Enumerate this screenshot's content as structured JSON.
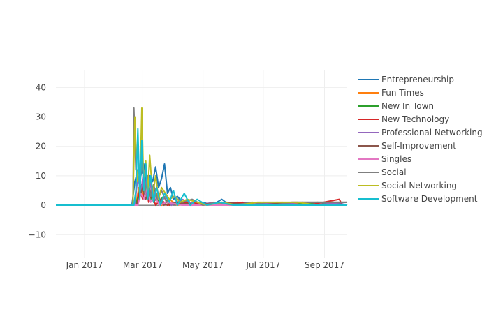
{
  "chart_data": {
    "type": "line",
    "title": "",
    "xlabel": "",
    "ylabel": "",
    "x_range": [
      "2016-12-03",
      "2017-09-24"
    ],
    "ylim": [
      -18,
      46
    ],
    "y_ticks": [
      -10,
      0,
      10,
      20,
      30,
      40
    ],
    "x_ticks": [
      {
        "date": "2017-01-01",
        "label": "Jan 2017"
      },
      {
        "date": "2017-03-01",
        "label": "Mar 2017"
      },
      {
        "date": "2017-05-01",
        "label": "May 2017"
      },
      {
        "date": "2017-07-01",
        "label": "Jul 2017"
      },
      {
        "date": "2017-09-01",
        "label": "Sep 2017"
      }
    ],
    "grid": true,
    "legend_position": "right",
    "series": [
      {
        "name": "Entrepreneurship",
        "color": "#1f77b4",
        "points": [
          [
            "2016-12-03",
            0
          ],
          [
            "2017-02-18",
            0
          ],
          [
            "2017-02-21",
            8
          ],
          [
            "2017-02-24",
            12
          ],
          [
            "2017-02-27",
            10
          ],
          [
            "2017-03-02",
            14
          ],
          [
            "2017-03-05",
            6
          ],
          [
            "2017-03-08",
            10
          ],
          [
            "2017-03-11",
            8
          ],
          [
            "2017-03-14",
            13
          ],
          [
            "2017-03-17",
            6
          ],
          [
            "2017-03-20",
            9
          ],
          [
            "2017-03-23",
            14
          ],
          [
            "2017-03-26",
            4
          ],
          [
            "2017-03-29",
            6
          ],
          [
            "2017-04-01",
            2
          ],
          [
            "2017-04-05",
            3
          ],
          [
            "2017-04-10",
            1
          ],
          [
            "2017-04-15",
            2
          ],
          [
            "2017-04-20",
            0
          ],
          [
            "2017-05-01",
            1
          ],
          [
            "2017-05-10",
            0
          ],
          [
            "2017-05-20",
            2
          ],
          [
            "2017-05-28",
            0
          ],
          [
            "2017-06-10",
            1
          ],
          [
            "2017-06-25",
            0
          ],
          [
            "2017-07-10",
            1
          ],
          [
            "2017-07-25",
            0
          ],
          [
            "2017-08-10",
            1
          ],
          [
            "2017-08-25",
            0
          ],
          [
            "2017-09-10",
            1
          ],
          [
            "2017-09-24",
            0
          ]
        ]
      },
      {
        "name": "Fun Times",
        "color": "#ff7f0e",
        "points": [
          [
            "2016-12-03",
            0
          ],
          [
            "2017-02-22",
            0
          ],
          [
            "2017-02-25",
            6
          ],
          [
            "2017-02-28",
            3
          ],
          [
            "2017-03-03",
            8
          ],
          [
            "2017-03-06",
            2
          ],
          [
            "2017-03-09",
            5
          ],
          [
            "2017-03-12",
            1
          ],
          [
            "2017-03-15",
            4
          ],
          [
            "2017-03-20",
            0
          ],
          [
            "2017-03-28",
            2
          ],
          [
            "2017-04-05",
            0
          ],
          [
            "2017-04-20",
            1
          ],
          [
            "2017-05-05",
            0
          ],
          [
            "2017-06-15",
            0
          ],
          [
            "2017-07-20",
            1
          ],
          [
            "2017-08-20",
            0
          ],
          [
            "2017-09-24",
            0
          ]
        ]
      },
      {
        "name": "New In Town",
        "color": "#2ca02c",
        "points": [
          [
            "2016-12-03",
            0
          ],
          [
            "2017-02-22",
            0
          ],
          [
            "2017-02-25",
            4
          ],
          [
            "2017-02-28",
            7
          ],
          [
            "2017-03-03",
            3
          ],
          [
            "2017-03-06",
            6
          ],
          [
            "2017-03-09",
            2
          ],
          [
            "2017-03-13",
            5
          ],
          [
            "2017-03-17",
            1
          ],
          [
            "2017-03-22",
            3
          ],
          [
            "2017-03-28",
            0
          ],
          [
            "2017-04-08",
            1
          ],
          [
            "2017-04-25",
            0
          ],
          [
            "2017-05-25",
            1
          ],
          [
            "2017-06-20",
            0
          ],
          [
            "2017-07-25",
            0
          ],
          [
            "2017-08-25",
            1
          ],
          [
            "2017-09-24",
            0
          ]
        ]
      },
      {
        "name": "New Technology",
        "color": "#d62728",
        "points": [
          [
            "2016-12-03",
            0
          ],
          [
            "2017-02-23",
            0
          ],
          [
            "2017-02-26",
            5
          ],
          [
            "2017-03-01",
            2
          ],
          [
            "2017-03-04",
            7
          ],
          [
            "2017-03-07",
            1
          ],
          [
            "2017-03-10",
            4
          ],
          [
            "2017-03-14",
            0
          ],
          [
            "2017-03-19",
            2
          ],
          [
            "2017-03-26",
            0
          ],
          [
            "2017-04-12",
            1
          ],
          [
            "2017-05-15",
            0
          ],
          [
            "2017-06-05",
            1
          ],
          [
            "2017-06-30",
            0
          ],
          [
            "2017-08-15",
            0
          ],
          [
            "2017-09-16",
            2
          ],
          [
            "2017-09-19",
            0
          ],
          [
            "2017-09-24",
            0
          ]
        ]
      },
      {
        "name": "Professional Networking",
        "color": "#9467bd",
        "points": [
          [
            "2016-12-03",
            0
          ],
          [
            "2017-02-21",
            0
          ],
          [
            "2017-02-24",
            10
          ],
          [
            "2017-02-27",
            4
          ],
          [
            "2017-03-02",
            12
          ],
          [
            "2017-03-05",
            3
          ],
          [
            "2017-03-08",
            9
          ],
          [
            "2017-03-11",
            2
          ],
          [
            "2017-03-15",
            6
          ],
          [
            "2017-03-19",
            1
          ],
          [
            "2017-03-24",
            3
          ],
          [
            "2017-03-30",
            0
          ],
          [
            "2017-04-10",
            2
          ],
          [
            "2017-04-25",
            0
          ],
          [
            "2017-05-12",
            1
          ],
          [
            "2017-06-10",
            0
          ],
          [
            "2017-07-15",
            1
          ],
          [
            "2017-08-15",
            0
          ],
          [
            "2017-09-24",
            1
          ]
        ]
      },
      {
        "name": "Self-Improvement",
        "color": "#8c564b",
        "points": [
          [
            "2016-12-03",
            0
          ],
          [
            "2017-02-23",
            0
          ],
          [
            "2017-02-26",
            3
          ],
          [
            "2017-03-01",
            6
          ],
          [
            "2017-03-04",
            2
          ],
          [
            "2017-03-08",
            5
          ],
          [
            "2017-03-12",
            1
          ],
          [
            "2017-03-16",
            3
          ],
          [
            "2017-03-22",
            0
          ],
          [
            "2017-04-03",
            1
          ],
          [
            "2017-04-22",
            0
          ],
          [
            "2017-05-20",
            1
          ],
          [
            "2017-06-25",
            0
          ],
          [
            "2017-07-30",
            1
          ],
          [
            "2017-09-24",
            1
          ]
        ]
      },
      {
        "name": "Singles",
        "color": "#e377c2",
        "points": [
          [
            "2016-12-03",
            0
          ],
          [
            "2017-02-24",
            0
          ],
          [
            "2017-02-27",
            4
          ],
          [
            "2017-03-02",
            2
          ],
          [
            "2017-03-05",
            6
          ],
          [
            "2017-03-09",
            1
          ],
          [
            "2017-03-13",
            3
          ],
          [
            "2017-03-18",
            0
          ],
          [
            "2017-03-25",
            1
          ],
          [
            "2017-04-10",
            0
          ],
          [
            "2017-05-10",
            0
          ],
          [
            "2017-07-01",
            0
          ],
          [
            "2017-09-24",
            0
          ]
        ]
      },
      {
        "name": "Social",
        "color": "#7f7f7f",
        "points": [
          [
            "2016-12-03",
            0
          ],
          [
            "2017-02-18",
            0
          ],
          [
            "2017-02-19",
            0
          ],
          [
            "2017-02-20",
            33
          ],
          [
            "2017-02-22",
            12
          ],
          [
            "2017-02-24",
            22
          ],
          [
            "2017-02-26",
            6
          ],
          [
            "2017-02-28",
            15
          ],
          [
            "2017-03-03",
            4
          ],
          [
            "2017-03-06",
            10
          ],
          [
            "2017-03-09",
            3
          ],
          [
            "2017-03-12",
            7
          ],
          [
            "2017-03-16",
            2
          ],
          [
            "2017-03-20",
            5
          ],
          [
            "2017-03-25",
            1
          ],
          [
            "2017-04-01",
            3
          ],
          [
            "2017-04-10",
            1
          ],
          [
            "2017-04-20",
            2
          ],
          [
            "2017-05-01",
            0
          ],
          [
            "2017-05-15",
            1
          ],
          [
            "2017-06-01",
            0
          ],
          [
            "2017-06-20",
            1
          ],
          [
            "2017-07-10",
            0
          ],
          [
            "2017-07-30",
            1
          ],
          [
            "2017-08-20",
            1
          ],
          [
            "2017-09-24",
            1
          ]
        ]
      },
      {
        "name": "Social Networking",
        "color": "#bcbd22",
        "points": [
          [
            "2016-12-03",
            0
          ],
          [
            "2017-02-19",
            0
          ],
          [
            "2017-02-21",
            30
          ],
          [
            "2017-02-23",
            8
          ],
          [
            "2017-02-25",
            14
          ],
          [
            "2017-02-26",
            3
          ],
          [
            "2017-02-28",
            33
          ],
          [
            "2017-03-02",
            5
          ],
          [
            "2017-03-04",
            15
          ],
          [
            "2017-03-06",
            4
          ],
          [
            "2017-03-08",
            17
          ],
          [
            "2017-03-11",
            3
          ],
          [
            "2017-03-14",
            10
          ],
          [
            "2017-03-17",
            2
          ],
          [
            "2017-03-20",
            6
          ],
          [
            "2017-03-24",
            4
          ],
          [
            "2017-03-28",
            2
          ],
          [
            "2017-04-02",
            3
          ],
          [
            "2017-04-08",
            1
          ],
          [
            "2017-04-15",
            2
          ],
          [
            "2017-04-25",
            1
          ],
          [
            "2017-05-05",
            0
          ],
          [
            "2017-05-20",
            1
          ],
          [
            "2017-06-05",
            0
          ],
          [
            "2017-06-25",
            1
          ],
          [
            "2017-07-15",
            1
          ],
          [
            "2017-08-05",
            1
          ],
          [
            "2017-08-25",
            0
          ],
          [
            "2017-09-10",
            0
          ],
          [
            "2017-09-24",
            0
          ]
        ]
      },
      {
        "name": "Software Development",
        "color": "#17becf",
        "points": [
          [
            "2016-12-03",
            0
          ],
          [
            "2017-02-20",
            0
          ],
          [
            "2017-02-22",
            5
          ],
          [
            "2017-02-24",
            26
          ],
          [
            "2017-02-26",
            2
          ],
          [
            "2017-02-28",
            22
          ],
          [
            "2017-03-02",
            5
          ],
          [
            "2017-03-04",
            14
          ],
          [
            "2017-03-06",
            2
          ],
          [
            "2017-03-09",
            10
          ],
          [
            "2017-03-12",
            1
          ],
          [
            "2017-03-15",
            6
          ],
          [
            "2017-03-19",
            0
          ],
          [
            "2017-03-23",
            4
          ],
          [
            "2017-03-28",
            1
          ],
          [
            "2017-04-01",
            5
          ],
          [
            "2017-04-05",
            0
          ],
          [
            "2017-04-12",
            4
          ],
          [
            "2017-04-18",
            0
          ],
          [
            "2017-04-25",
            2
          ],
          [
            "2017-05-05",
            0
          ],
          [
            "2017-05-18",
            1
          ],
          [
            "2017-06-01",
            0
          ],
          [
            "2017-06-20",
            0
          ],
          [
            "2017-07-20",
            0
          ],
          [
            "2017-08-20",
            0
          ],
          [
            "2017-09-24",
            0
          ]
        ]
      }
    ]
  }
}
